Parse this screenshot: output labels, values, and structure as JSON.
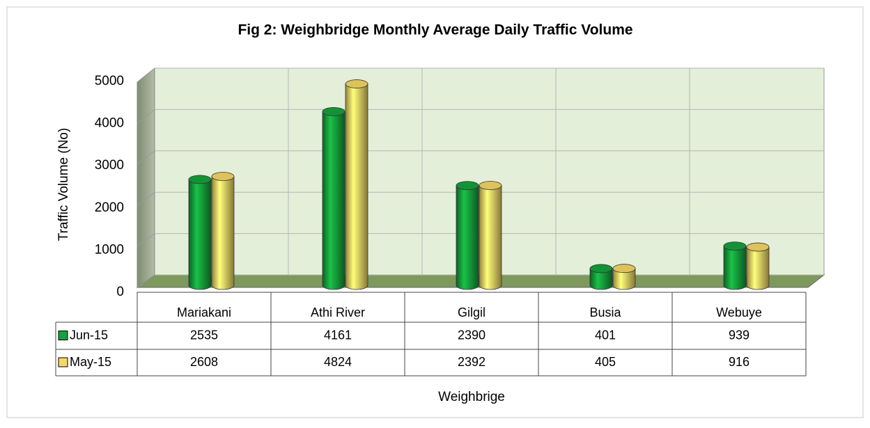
{
  "chart_data": {
    "type": "bar",
    "title": "Fig 2: Weighbridge Monthly Average Daily Traffic Volume",
    "y_label": "Traffic Volume (No)",
    "x_label": "Weighbrige",
    "categories": [
      "Mariakani",
      "Athi River",
      "Gilgil",
      "Busia",
      "Webuye"
    ],
    "series": [
      {
        "name": "Jun-15",
        "color": "#16a23c",
        "values": [
          2535,
          4161,
          2390,
          401,
          939
        ]
      },
      {
        "name": "May-15",
        "color": "#f7d766",
        "values": [
          2608,
          4824,
          2392,
          405,
          916
        ]
      }
    ],
    "ylim": [
      0,
      5000
    ],
    "yticks": [
      0,
      1000,
      2000,
      3000,
      4000,
      5000
    ],
    "grid": true
  }
}
